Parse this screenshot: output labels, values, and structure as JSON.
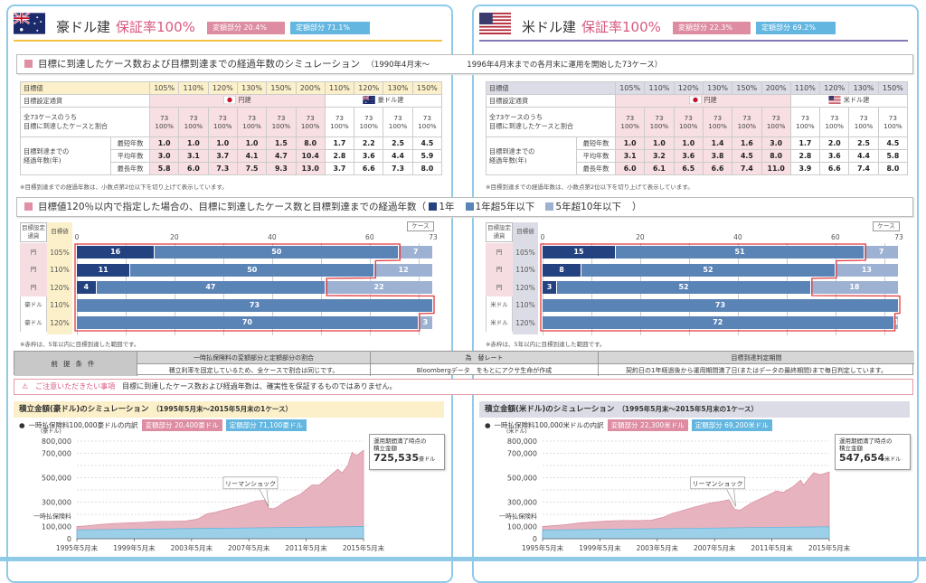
{
  "section_titles": {
    "simulation": "目標に到達したケース数および目標到達までの経過年数のシミュレーション",
    "simulation_period_1": "（1990年4月末～",
    "simulation_period_2": "1996年4月末までの各月末に運用を開始した73ケース）",
    "bar_title": "目標値120％以内で指定した場合の、目標に到達したケース数と目標到達までの経過年数（",
    "bar_legend": [
      {
        "label": "1年",
        "color": "#23427f"
      },
      {
        "label": "1年超5年以下",
        "color": "#5a83b6"
      },
      {
        "label": "5年超10年以下",
        "color": "#9db1d2"
      }
    ],
    "bar_title_end": "）"
  },
  "conditions": {
    "label": "前提条件",
    "headers": [
      "一時払保険料の変額部分と定額部分の割合",
      "為　替レート",
      "目標到達判定期間"
    ],
    "values": [
      "積立利率を固定しているため、全ケースで割合は同じです。",
      "Bloombergデータ　をもとにアクサ生命が作成",
      "契約日の1年経過後から運用期間満了日(またはデータの最終期間)まで毎日判定しています。"
    ]
  },
  "notice": {
    "label": "ご注意いただきたい事項",
    "text": "目標に到達したケース数および経過年数は、確実性を保証するものではありません。"
  },
  "panels": [
    {
      "currency_title": "豪ドル建",
      "guarantee": "保証率100%",
      "variable_badge": "変額部分 20.4%",
      "fixed_badge": "定額部分 71.1%",
      "flag": "australia-flag",
      "accent": "#f5c445",
      "header_bg": "#fbf0c9",
      "table": {
        "header_label": "目標値",
        "targets": [
          "105%",
          "110%",
          "120%",
          "130%",
          "150%",
          "200%",
          "110%",
          "120%",
          "130%",
          "150%"
        ],
        "currency_row_label": "目標設定通貨",
        "yen_label": "円建",
        "foreign_label": "豪ドル建",
        "reach_label_1": "全73ケースのうち",
        "reach_label_2": "目標に到達したケースと割合",
        "reach": [
          [
            "73",
            "100%"
          ],
          [
            "73",
            "100%"
          ],
          [
            "73",
            "100%"
          ],
          [
            "73",
            "100%"
          ],
          [
            "73",
            "100%"
          ],
          [
            "73",
            "100%"
          ],
          [
            "73",
            "100%"
          ],
          [
            "73",
            "100%"
          ],
          [
            "73",
            "100%"
          ],
          [
            "73",
            "100%"
          ]
        ],
        "years_label_1": "目標到達までの",
        "years_label_2": "経過年数(年)",
        "rows": [
          {
            "label": "最短年数",
            "values": [
              "1.0",
              "1.0",
              "1.0",
              "1.0",
              "1.5",
              "8.0",
              "1.7",
              "2.2",
              "2.5",
              "4.5"
            ]
          },
          {
            "label": "平均年数",
            "values": [
              "3.0",
              "3.1",
              "3.7",
              "4.1",
              "4.7",
              "10.4",
              "2.8",
              "3.6",
              "4.4",
              "5.9"
            ]
          },
          {
            "label": "最長年数",
            "values": [
              "5.8",
              "6.0",
              "7.3",
              "7.5",
              "9.3",
              "13.0",
              "3.7",
              "6.6",
              "7.3",
              "8.0"
            ]
          }
        ]
      },
      "table_note": "※目標到達までの経過年数は、小数点第2位以下を切り上げて表示しています。",
      "bar_note": "※赤枠は、5年以内に目標到達した範囲です。",
      "area_title": "積立金額(豪ドル)のシミュレーション",
      "area_period": "（1995年5月末～2015年5月末の1ケース）",
      "legend_label": "一時払保険料100,000豪ドルの内訳",
      "legend_variable": "変額部分 20,400豪ドル",
      "legend_fixed": "定額部分 71,100豪ドル",
      "callout_line1": "運用期間満了時点の",
      "callout_line2": "積立金額",
      "callout_value": "725,535",
      "callout_unit": "豪ドル",
      "lehman_label": "リーマンショック"
    },
    {
      "currency_title": "米ドル建",
      "guarantee": "保証率100%",
      "variable_badge": "変額部分 22.3%",
      "fixed_badge": "定額部分 69.2%",
      "flag": "usa-flag",
      "accent": "#8677b5",
      "header_bg": "#dcdce6",
      "table": {
        "header_label": "目標値",
        "targets": [
          "105%",
          "110%",
          "120%",
          "130%",
          "150%",
          "200%",
          "110%",
          "120%",
          "130%",
          "150%"
        ],
        "currency_row_label": "目標設定通貨",
        "yen_label": "円建",
        "foreign_label": "米ドル建",
        "reach_label_1": "全73ケースのうち",
        "reach_label_2": "目標に到達したケースと割合",
        "reach": [
          [
            "73",
            "100%"
          ],
          [
            "73",
            "100%"
          ],
          [
            "73",
            "100%"
          ],
          [
            "73",
            "100%"
          ],
          [
            "73",
            "100%"
          ],
          [
            "73",
            "100%"
          ],
          [
            "73",
            "100%"
          ],
          [
            "73",
            "100%"
          ],
          [
            "73",
            "100%"
          ],
          [
            "73",
            "100%"
          ]
        ],
        "years_label_1": "目標到達までの",
        "years_label_2": "経過年数(年)",
        "rows": [
          {
            "label": "最短年数",
            "values": [
              "1.0",
              "1.0",
              "1.0",
              "1.4",
              "1.6",
              "3.0",
              "1.7",
              "2.0",
              "2.5",
              "4.5"
            ]
          },
          {
            "label": "平均年数",
            "values": [
              "3.1",
              "3.2",
              "3.6",
              "3.8",
              "4.5",
              "8.0",
              "2.8",
              "3.6",
              "4.4",
              "5.8"
            ]
          },
          {
            "label": "最長年数",
            "values": [
              "6.0",
              "6.1",
              "6.5",
              "6.6",
              "7.4",
              "11.0",
              "3.9",
              "6.6",
              "7.4",
              "8.0"
            ]
          }
        ]
      },
      "table_note": "※目標到達までの経過年数は、小数点第2位以下を切り上げて表示しています。",
      "bar_note": "※赤枠は、5年以内に目標到達した範囲です。",
      "area_title": "積立金額(米ドル)のシミュレーション",
      "area_period": "（1995年5月末～2015年5月末の1ケース）",
      "legend_label": "一時払保険料100,000米ドルの内訳",
      "legend_variable": "変額部分 22,300米ドル",
      "legend_fixed": "定額部分 69,200米ドル",
      "callout_line1": "運用期間満了時点の",
      "callout_line2": "積立金額",
      "callout_value": "547,654",
      "callout_unit": "米ドル",
      "lehman_label": "リーマンショック"
    }
  ],
  "chart_data": [
    {
      "type": "bar",
      "stacked": true,
      "orientation": "horizontal",
      "title": "豪ドル建: 目標値120％以内の目標到達ケース数",
      "header_currency": "目標設定通貨",
      "header_target": "目標値",
      "unit": "ケース",
      "currencies": [
        "円",
        "円",
        "円",
        "豪ドル",
        "豪ドル"
      ],
      "categories": [
        "105%",
        "110%",
        "120%",
        "110%",
        "120%"
      ],
      "series": [
        {
          "name": "1年",
          "values": [
            16,
            11,
            4,
            0,
            0
          ]
        },
        {
          "name": "1年超5年以下",
          "values": [
            50,
            50,
            47,
            73,
            70
          ]
        },
        {
          "name": "5年超10年以下",
          "values": [
            7,
            12,
            22,
            0,
            3
          ]
        }
      ],
      "xticks": [
        0,
        20,
        40,
        60,
        73
      ],
      "xlim": [
        0,
        73
      ]
    },
    {
      "type": "bar",
      "stacked": true,
      "orientation": "horizontal",
      "title": "米ドル建: 目標値120％以内の目標到達ケース数",
      "header_currency": "目標設定通貨",
      "header_target": "目標値",
      "unit": "ケース",
      "currencies": [
        "円",
        "円",
        "円",
        "米ドル",
        "米ドル"
      ],
      "categories": [
        "105%",
        "110%",
        "120%",
        "110%",
        "120%"
      ],
      "series": [
        {
          "name": "1年",
          "values": [
            15,
            8,
            3,
            0,
            0
          ]
        },
        {
          "name": "1年超5年以下",
          "values": [
            51,
            52,
            52,
            73,
            72
          ]
        },
        {
          "name": "5年超10年以下",
          "values": [
            7,
            13,
            18,
            0,
            1
          ]
        }
      ],
      "xticks": [
        0,
        20,
        40,
        60,
        73
      ],
      "xlim": [
        0,
        73
      ]
    },
    {
      "type": "area",
      "title": "積立金額(豪ドル)のシミュレーション",
      "ylabel": "(豪ドル)",
      "ylim": [
        0,
        800000
      ],
      "yticks": [
        {
          "v": 0,
          "l": "0"
        },
        {
          "v": 100000,
          "l": "100,000"
        },
        {
          "v": 300000,
          "l": "300,000"
        },
        {
          "v": 500000,
          "l": "500,000"
        },
        {
          "v": 700000,
          "l": "700,000"
        },
        {
          "v": 800000,
          "l": "800,000"
        }
      ],
      "premium_label": "一時払保険料",
      "xlim": [
        1995.4,
        2015.4
      ],
      "xticks": [
        {
          "v": 1995.4,
          "l": "1995年5月末"
        },
        {
          "v": 1999.4,
          "l": "1999年5月末"
        },
        {
          "v": 2003.4,
          "l": "2003年5月末"
        },
        {
          "v": 2007.4,
          "l": "2007年5月末"
        },
        {
          "v": 2011.4,
          "l": "2011年5月末"
        },
        {
          "v": 2015.4,
          "l": "2015年5月末"
        }
      ],
      "lehman_x": 2008.9,
      "series": [
        {
          "name": "積立金額",
          "color": "#e6b3bf",
          "points": [
            [
              1995.4,
              100000
            ],
            [
              1996,
              105000
            ],
            [
              1997,
              117000
            ],
            [
              1998,
              125000
            ],
            [
              1999,
              130000
            ],
            [
              2000,
              135000
            ],
            [
              2001,
              142000
            ],
            [
              2002,
              143000
            ],
            [
              2003,
              145000
            ],
            [
              2003.8,
              160000
            ],
            [
              2004.5,
              205000
            ],
            [
              2005,
              215000
            ],
            [
              2006,
              245000
            ],
            [
              2007,
              275000
            ],
            [
              2007.9,
              310000
            ],
            [
              2008.5,
              315000
            ],
            [
              2008.8,
              250000
            ],
            [
              2009.1,
              245000
            ],
            [
              2009.4,
              260000
            ],
            [
              2010,
              310000
            ],
            [
              2011,
              365000
            ],
            [
              2011.8,
              440000
            ],
            [
              2012.3,
              440000
            ],
            [
              2013,
              510000
            ],
            [
              2013.6,
              570000
            ],
            [
              2013.9,
              540000
            ],
            [
              2014.3,
              600000
            ],
            [
              2014.6,
              710000
            ],
            [
              2014.9,
              680000
            ],
            [
              2015.4,
              725535
            ]
          ]
        },
        {
          "name": "定額部分",
          "color": "#9bd0e8",
          "points": [
            [
              1995.4,
              72000
            ],
            [
              2000,
              78000
            ],
            [
              2005,
              85000
            ],
            [
              2010,
              92000
            ],
            [
              2015.4,
              100000
            ]
          ]
        }
      ]
    },
    {
      "type": "area",
      "title": "積立金額(米ドル)のシミュレーション",
      "ylabel": "(米ドル)",
      "ylim": [
        0,
        800000
      ],
      "yticks": [
        {
          "v": 0,
          "l": "0"
        },
        {
          "v": 100000,
          "l": "100,000"
        },
        {
          "v": 300000,
          "l": "300,000"
        },
        {
          "v": 500000,
          "l": "500,000"
        },
        {
          "v": 700000,
          "l": "700,000"
        },
        {
          "v": 800000,
          "l": "800,000"
        }
      ],
      "premium_label": "一時払保険料",
      "xlim": [
        1995.4,
        2015.4
      ],
      "xticks": [
        {
          "v": 1995.4,
          "l": "1995年5月末"
        },
        {
          "v": 1999.4,
          "l": "1999年5月末"
        },
        {
          "v": 2003.4,
          "l": "2003年5月末"
        },
        {
          "v": 2007.4,
          "l": "2007年5月末"
        },
        {
          "v": 2011.4,
          "l": "2011年5月末"
        },
        {
          "v": 2015.4,
          "l": "2015年5月末"
        }
      ],
      "lehman_x": 2009.0,
      "series": [
        {
          "name": "積立金額",
          "color": "#e6b3bf",
          "points": [
            [
              1995.4,
              100000
            ],
            [
              1997,
              115000
            ],
            [
              1998,
              130000
            ],
            [
              1999,
              138000
            ],
            [
              2000,
              145000
            ],
            [
              2001,
              150000
            ],
            [
              2002,
              148000
            ],
            [
              2003,
              152000
            ],
            [
              2003.8,
              175000
            ],
            [
              2004.5,
              210000
            ],
            [
              2005,
              225000
            ],
            [
              2006,
              260000
            ],
            [
              2007,
              290000
            ],
            [
              2008,
              310000
            ],
            [
              2008.4,
              320000
            ],
            [
              2008.8,
              240000
            ],
            [
              2009.2,
              235000
            ],
            [
              2010,
              295000
            ],
            [
              2011,
              350000
            ],
            [
              2011.7,
              390000
            ],
            [
              2012.2,
              380000
            ],
            [
              2012.9,
              430000
            ],
            [
              2013.4,
              480000
            ],
            [
              2013.6,
              440000
            ],
            [
              2014.3,
              540000
            ],
            [
              2014.8,
              525000
            ],
            [
              2015.4,
              547654
            ]
          ]
        },
        {
          "name": "定額部分",
          "color": "#9bd0e8",
          "points": [
            [
              1995.4,
              70000
            ],
            [
              2000,
              77000
            ],
            [
              2005,
              84000
            ],
            [
              2010,
              91000
            ],
            [
              2015.4,
              98000
            ]
          ]
        }
      ]
    }
  ]
}
